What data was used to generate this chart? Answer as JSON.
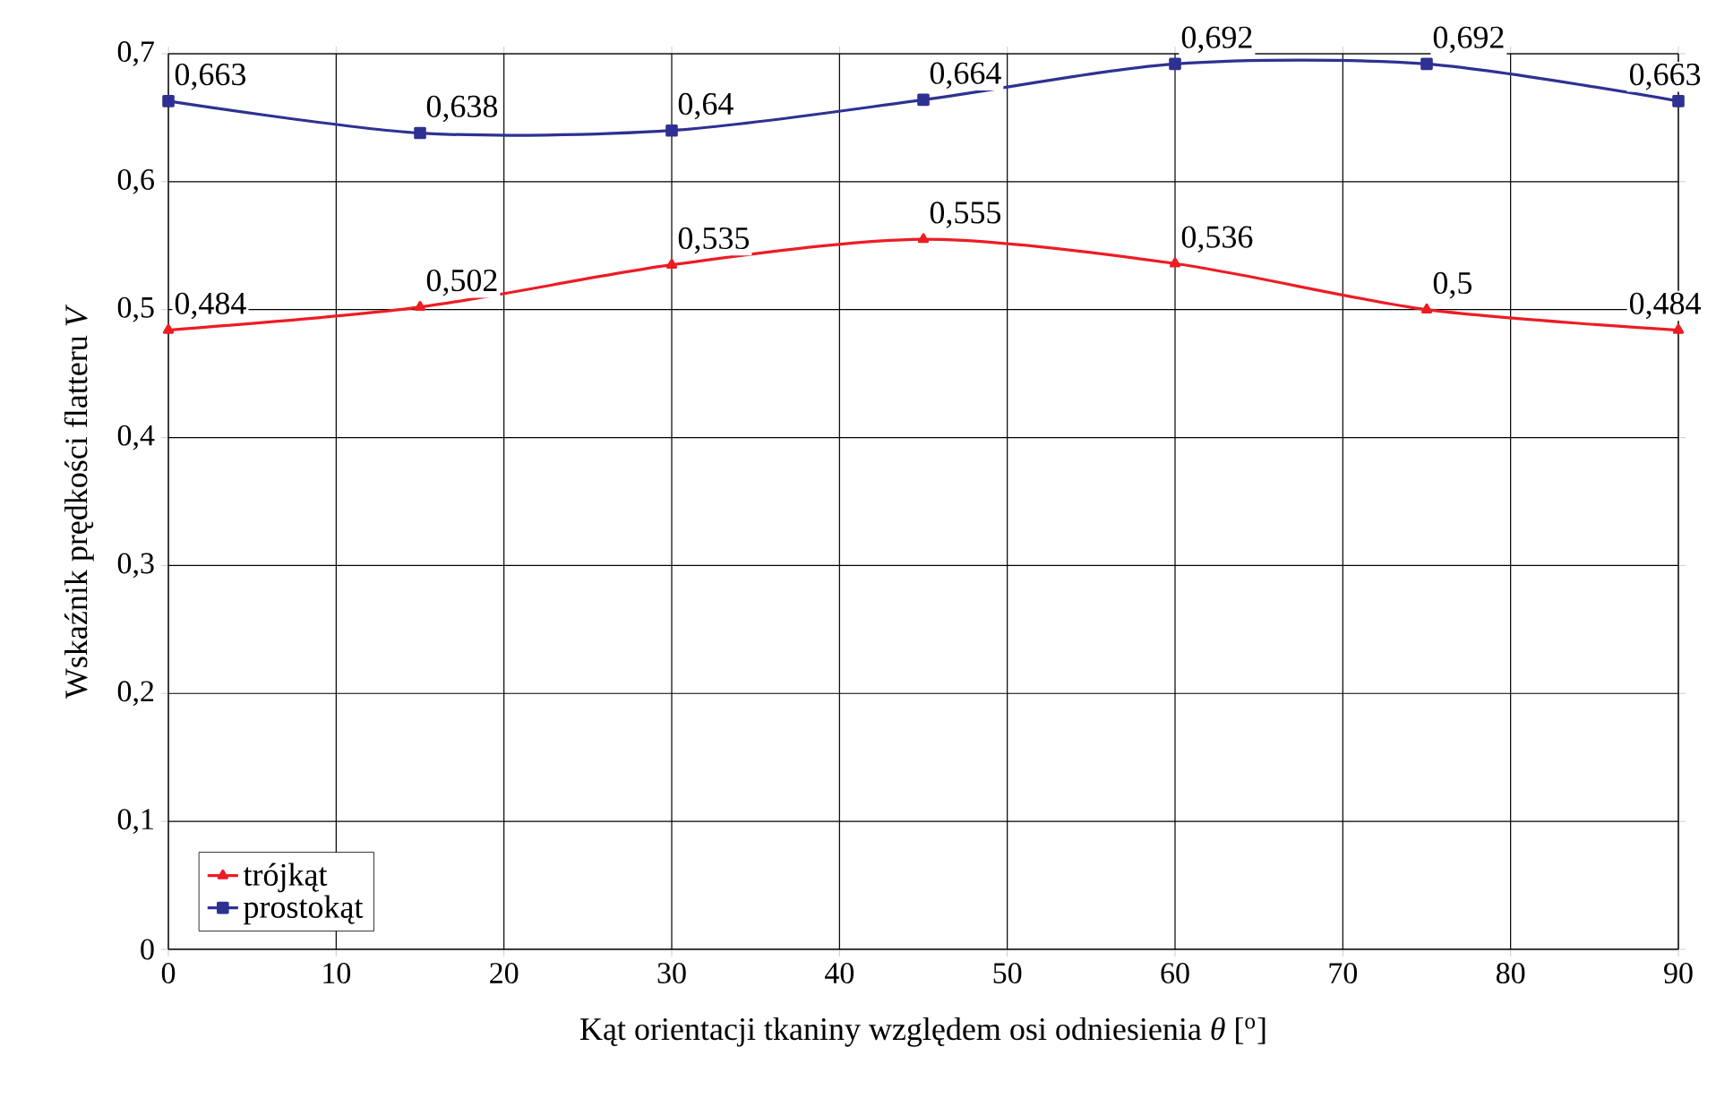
{
  "chart_data": {
    "type": "line",
    "xlabel": "Kąt orientacji tkaniny względem osi odniesienia *θ* [$^{o}$]",
    "ylabel": "Wskaźnik prędkości flatteru *V*",
    "x": [
      0,
      15,
      30,
      45,
      60,
      75,
      90
    ],
    "series": [
      {
        "name": "trójkąt",
        "color": "#ed1c24",
        "marker": "triangle",
        "values": [
          0.484,
          0.502,
          0.535,
          0.555,
          0.536,
          0.5,
          0.484
        ],
        "value_labels": [
          "0,484",
          "0,502",
          "0,535",
          "0,555",
          "0,536",
          "0,5",
          "0,484"
        ]
      },
      {
        "name": "prostokąt",
        "color": "#2e3192",
        "marker": "square",
        "values": [
          0.663,
          0.638,
          0.64,
          0.664,
          0.692,
          0.692,
          0.663
        ],
        "value_labels": [
          "0,663",
          "0,638",
          "0,64",
          "0,664",
          "0,692",
          "0,692",
          "0,663"
        ]
      }
    ],
    "xlim": [
      0,
      90
    ],
    "xticks": [
      0,
      10,
      20,
      30,
      40,
      50,
      60,
      70,
      80,
      90
    ],
    "ylim": [
      0,
      0.7
    ],
    "yticks": [
      0,
      {
        "value": 0.1,
        "label": "0,1"
      },
      {
        "value": 0.2,
        "label": "0,2"
      },
      {
        "value": 0.3,
        "label": "0,3"
      },
      {
        "value": 0.4,
        "label": "0,4"
      },
      {
        "value": 0.5,
        "label": "0,5"
      },
      {
        "value": 0.6,
        "label": "0,6"
      },
      {
        "value": 0.7,
        "label": "0,7"
      }
    ],
    "grid": true,
    "legend": "bottom left",
    "line_style": "solid"
  }
}
